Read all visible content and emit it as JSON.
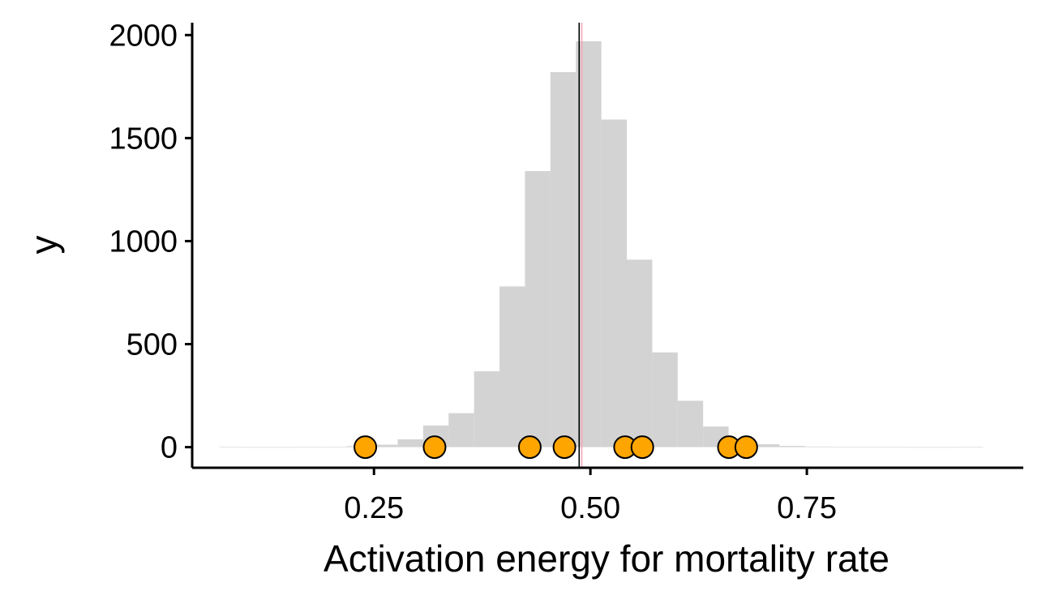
{
  "chart_data": {
    "type": "bar",
    "xlabel": "Activation energy for mortality rate",
    "ylabel": "y",
    "xlim": [
      0.04,
      1.0
    ],
    "ylim": [
      -100,
      2060
    ],
    "x_ticks": [
      0.25,
      0.5,
      0.75
    ],
    "x_tick_labels": [
      "0.25",
      "0.50",
      "0.75"
    ],
    "y_ticks": [
      0,
      500,
      1000,
      1500,
      2000
    ],
    "y_tick_labels": [
      "0",
      "500",
      "1000",
      "1500",
      "2000"
    ],
    "grid": false,
    "histogram": {
      "bin_width": 0.0294,
      "bin_centers": [
        0.0863,
        0.1157,
        0.1451,
        0.1745,
        0.2039,
        0.2333,
        0.2627,
        0.2921,
        0.3215,
        0.3509,
        0.3803,
        0.4097,
        0.4391,
        0.4685,
        0.4979,
        0.5273,
        0.5567,
        0.5861,
        0.6155,
        0.6449,
        0.6743,
        0.7037,
        0.7331,
        0.7625,
        0.7919,
        0.8213,
        0.8507,
        0.8801,
        0.9095,
        0.9389
      ],
      "counts": [
        1,
        0,
        0,
        1,
        2,
        5,
        12,
        38,
        105,
        165,
        368,
        780,
        1340,
        1820,
        1970,
        1590,
        910,
        460,
        225,
        100,
        42,
        14,
        6,
        3,
        1,
        1,
        1,
        0,
        0,
        1
      ],
      "color": "#d3d3d3"
    },
    "points": {
      "x": [
        0.24,
        0.32,
        0.43,
        0.47,
        0.54,
        0.56,
        0.66,
        0.68
      ],
      "y": [
        0,
        0,
        0,
        0,
        0,
        0,
        0,
        0
      ],
      "fill": "#ffa500",
      "stroke": "#000000"
    },
    "vlines": [
      {
        "x": 0.487,
        "color": "#000000"
      },
      {
        "x": 0.49,
        "color": "#f4a6b4"
      }
    ]
  }
}
